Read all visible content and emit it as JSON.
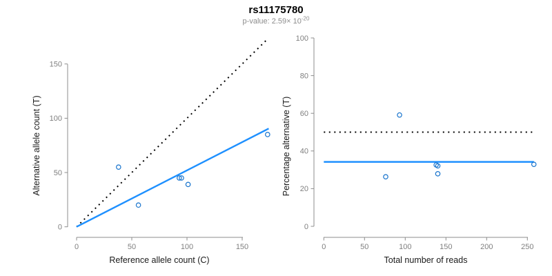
{
  "header": {
    "title": "rs11175780",
    "subtitle_prefix": "p-value: 2.59× 10",
    "subtitle_exponent": "-20"
  },
  "colors": {
    "fit_line": "#1E90FF",
    "point_stroke": "#1874CD",
    "identity_line": "#000000",
    "axis_line": "#8C8C8C",
    "tick_label": "#7F7F7F",
    "axis_title": "#1A1A1A"
  },
  "chart_data": [
    {
      "type": "scatter",
      "panel": "left",
      "xlabel": "Reference allele count (C)",
      "ylabel": "Alternative allele count (T)",
      "xlim": [
        0,
        174
      ],
      "ylim": [
        0,
        173
      ],
      "xticks": [
        0,
        50,
        100,
        150
      ],
      "yticks": [
        0,
        50,
        100,
        150
      ],
      "grid": false,
      "points": [
        [
          38,
          55
        ],
        [
          56,
          20
        ],
        [
          93,
          45
        ],
        [
          95,
          45
        ],
        [
          101,
          39
        ],
        [
          173,
          85
        ]
      ],
      "lines": [
        {
          "name": "identity-line",
          "style": "dotted",
          "color": "#000000",
          "from": [
            0,
            0
          ],
          "to": [
            173,
            173
          ]
        },
        {
          "name": "fit-line",
          "style": "solid",
          "color": "#1E90FF",
          "from": [
            0,
            0
          ],
          "to": [
            174,
            90.5
          ]
        }
      ]
    },
    {
      "type": "scatter",
      "panel": "right",
      "xlabel": "Total number of reads",
      "ylabel": "Percentage alternative (T)",
      "xlim": [
        0,
        258
      ],
      "ylim": [
        0,
        100
      ],
      "xticks": [
        0,
        50,
        100,
        150,
        200,
        250
      ],
      "yticks": [
        0,
        20,
        40,
        60,
        80,
        100
      ],
      "grid": false,
      "points": [
        [
          93,
          59.1
        ],
        [
          76,
          26.3
        ],
        [
          138,
          32.6
        ],
        [
          140,
          32.1
        ],
        [
          140,
          27.9
        ],
        [
          258,
          32.9
        ]
      ],
      "lines": [
        {
          "name": "expected-heterozygous-line",
          "style": "dotted",
          "color": "#000000",
          "from": [
            0,
            50
          ],
          "to": [
            258,
            50
          ]
        },
        {
          "name": "observed-fraction-line",
          "style": "solid",
          "color": "#1E90FF",
          "from": [
            0,
            34.2
          ],
          "to": [
            258,
            34.2
          ]
        }
      ]
    }
  ]
}
